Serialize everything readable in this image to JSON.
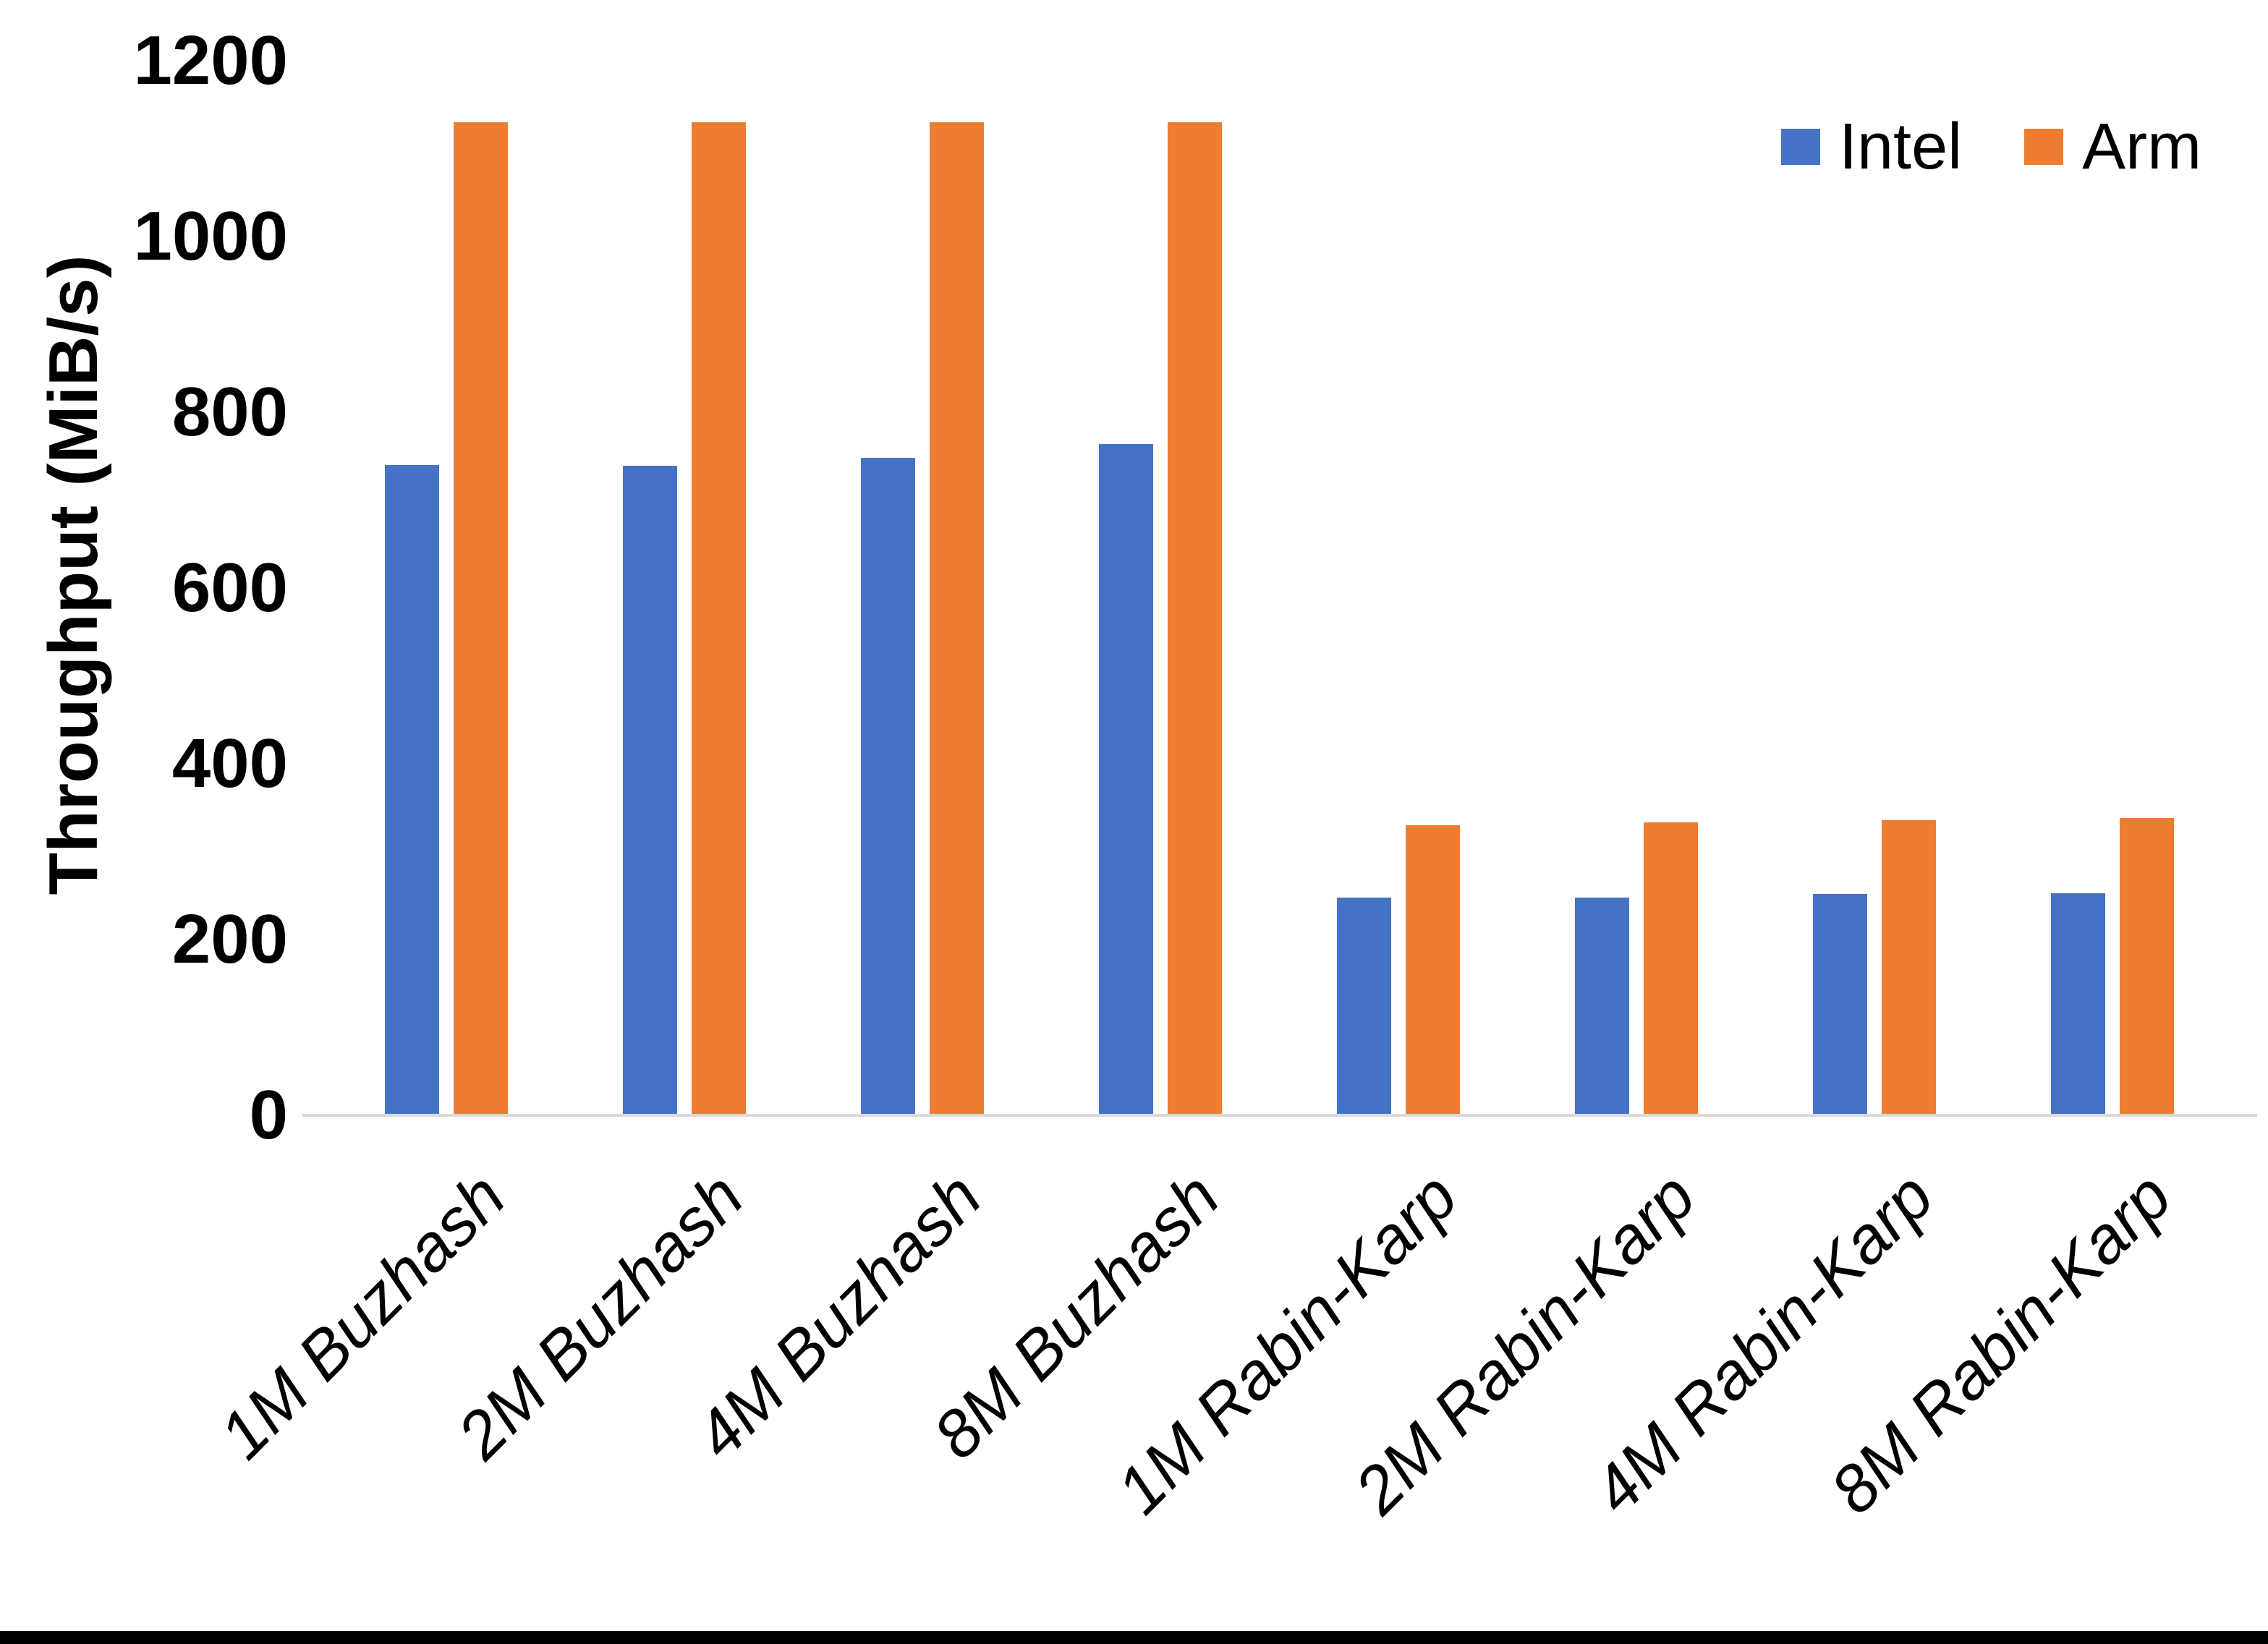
{
  "chart_data": {
    "type": "bar",
    "title": "",
    "ylabel": "Throughput (MiB/s)",
    "xlabel": "",
    "ylim": [
      0,
      1200
    ],
    "yticks": [
      0,
      200,
      400,
      600,
      800,
      1000,
      1200
    ],
    "grid": false,
    "legend_position": "top-right",
    "categories": [
      "1M Buzhash",
      "2M Buzhash",
      "4M Buzhash",
      "8M Buzhash",
      "1M Rabin-Karp",
      "2M Rabin-Karp",
      "4M Rabin-Karp",
      "8M Rabin-Karp"
    ],
    "series": [
      {
        "name": "Intel",
        "color": "#4472C4",
        "values": [
          740,
          739,
          748,
          764,
          248,
          248,
          252,
          253
        ]
      },
      {
        "name": "Arm",
        "color": "#ED7D31",
        "values": [
          1130,
          1130,
          1130,
          1130,
          330,
          333,
          336,
          338
        ]
      }
    ]
  },
  "colors": {
    "axis_line": "#D9D9D9",
    "background": "#FFFFFF",
    "text": "#000000",
    "bottom_bar": "#000000"
  }
}
